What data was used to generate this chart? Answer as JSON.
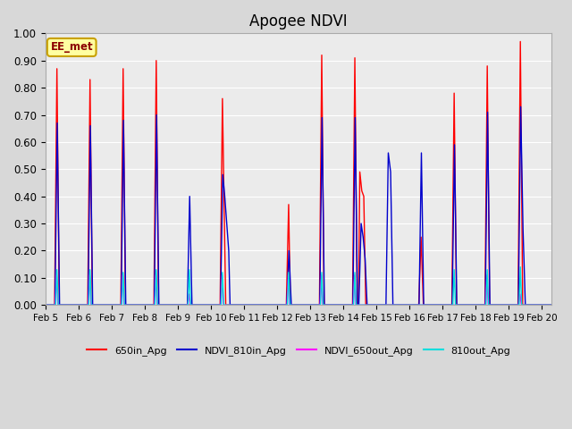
{
  "title": "Apogee NDVI",
  "annotation": "EE_met",
  "ylim": [
    0.0,
    1.0
  ],
  "yticks": [
    0.0,
    0.1,
    0.2,
    0.3,
    0.4,
    0.5,
    0.6,
    0.7,
    0.8,
    0.9,
    1.0
  ],
  "xtick_days": [
    5,
    6,
    7,
    8,
    9,
    10,
    11,
    12,
    13,
    14,
    15,
    16,
    17,
    18,
    19,
    20
  ],
  "day_start": 5.0,
  "day_end": 20.3,
  "series": {
    "650in_Apg": {
      "color": "#FF0000",
      "linewidth": 1.0,
      "keypoints": [
        [
          5.0,
          0.0
        ],
        [
          5.28,
          0.0
        ],
        [
          5.35,
          0.87
        ],
        [
          5.42,
          0.0
        ],
        [
          6.28,
          0.0
        ],
        [
          6.35,
          0.83
        ],
        [
          6.42,
          0.0
        ],
        [
          7.28,
          0.0
        ],
        [
          7.35,
          0.87
        ],
        [
          7.42,
          0.0
        ],
        [
          8.28,
          0.0
        ],
        [
          8.35,
          0.9
        ],
        [
          8.42,
          0.0
        ],
        [
          9.28,
          0.0
        ],
        [
          10.28,
          0.0
        ],
        [
          10.35,
          0.76
        ],
        [
          10.4,
          0.37
        ],
        [
          10.45,
          0.0
        ],
        [
          11.28,
          0.0
        ],
        [
          12.28,
          0.0
        ],
        [
          12.35,
          0.37
        ],
        [
          12.4,
          0.0
        ],
        [
          13.28,
          0.0
        ],
        [
          13.35,
          0.92
        ],
        [
          13.42,
          0.0
        ],
        [
          14.28,
          0.0
        ],
        [
          14.35,
          0.91
        ],
        [
          14.42,
          0.0
        ],
        [
          14.46,
          0.0
        ],
        [
          14.5,
          0.49
        ],
        [
          14.56,
          0.42
        ],
        [
          14.62,
          0.4
        ],
        [
          14.68,
          0.0
        ],
        [
          15.28,
          0.0
        ],
        [
          16.28,
          0.0
        ],
        [
          16.35,
          0.25
        ],
        [
          16.42,
          0.0
        ],
        [
          17.28,
          0.0
        ],
        [
          17.35,
          0.78
        ],
        [
          17.42,
          0.0
        ],
        [
          18.28,
          0.0
        ],
        [
          18.35,
          0.88
        ],
        [
          18.42,
          0.0
        ],
        [
          19.28,
          0.0
        ],
        [
          19.35,
          0.97
        ],
        [
          19.42,
          0.0
        ],
        [
          20.3,
          0.0
        ]
      ]
    },
    "NDVI_810in_Apg": {
      "color": "#0000CC",
      "linewidth": 1.0,
      "keypoints": [
        [
          5.0,
          0.0
        ],
        [
          5.29,
          0.0
        ],
        [
          5.36,
          0.67
        ],
        [
          5.43,
          0.0
        ],
        [
          6.29,
          0.0
        ],
        [
          6.36,
          0.66
        ],
        [
          6.43,
          0.0
        ],
        [
          7.29,
          0.0
        ],
        [
          7.36,
          0.68
        ],
        [
          7.43,
          0.0
        ],
        [
          8.29,
          0.0
        ],
        [
          8.36,
          0.7
        ],
        [
          8.43,
          0.0
        ],
        [
          9.29,
          0.0
        ],
        [
          9.36,
          0.4
        ],
        [
          9.43,
          0.0
        ],
        [
          10.29,
          0.0
        ],
        [
          10.36,
          0.48
        ],
        [
          10.42,
          0.4
        ],
        [
          10.48,
          0.3
        ],
        [
          10.54,
          0.2
        ],
        [
          10.58,
          0.0
        ],
        [
          11.29,
          0.0
        ],
        [
          12.29,
          0.0
        ],
        [
          12.36,
          0.2
        ],
        [
          12.43,
          0.0
        ],
        [
          13.29,
          0.0
        ],
        [
          13.36,
          0.69
        ],
        [
          13.43,
          0.0
        ],
        [
          14.29,
          0.0
        ],
        [
          14.36,
          0.69
        ],
        [
          14.43,
          0.0
        ],
        [
          14.47,
          0.0
        ],
        [
          14.54,
          0.3
        ],
        [
          14.6,
          0.25
        ],
        [
          14.66,
          0.17
        ],
        [
          14.72,
          0.0
        ],
        [
          15.29,
          0.0
        ],
        [
          15.36,
          0.56
        ],
        [
          15.43,
          0.49
        ],
        [
          15.5,
          0.0
        ],
        [
          16.29,
          0.0
        ],
        [
          16.36,
          0.56
        ],
        [
          16.43,
          0.0
        ],
        [
          17.29,
          0.0
        ],
        [
          17.36,
          0.59
        ],
        [
          17.43,
          0.0
        ],
        [
          18.29,
          0.0
        ],
        [
          18.36,
          0.71
        ],
        [
          18.43,
          0.0
        ],
        [
          19.29,
          0.0
        ],
        [
          19.36,
          0.73
        ],
        [
          19.43,
          0.28
        ],
        [
          19.5,
          0.0
        ],
        [
          20.3,
          0.0
        ]
      ]
    },
    "NDVI_650out_Apg": {
      "color": "#FF00FF",
      "linewidth": 1.0,
      "keypoints": [
        [
          5.0,
          0.0
        ],
        [
          5.3,
          0.0
        ],
        [
          5.34,
          0.11
        ],
        [
          5.38,
          0.0
        ],
        [
          6.3,
          0.0
        ],
        [
          6.34,
          0.11
        ],
        [
          6.38,
          0.0
        ],
        [
          7.3,
          0.0
        ],
        [
          7.34,
          0.11
        ],
        [
          7.38,
          0.0
        ],
        [
          8.3,
          0.0
        ],
        [
          8.34,
          0.11
        ],
        [
          8.38,
          0.0
        ],
        [
          9.3,
          0.0
        ],
        [
          9.34,
          0.04
        ],
        [
          9.38,
          0.0
        ],
        [
          10.3,
          0.0
        ],
        [
          10.34,
          0.11
        ],
        [
          10.38,
          0.0
        ],
        [
          12.3,
          0.0
        ],
        [
          12.34,
          0.11
        ],
        [
          12.38,
          0.0
        ],
        [
          13.3,
          0.0
        ],
        [
          13.34,
          0.11
        ],
        [
          13.38,
          0.0
        ],
        [
          14.3,
          0.0
        ],
        [
          14.34,
          0.11
        ],
        [
          14.38,
          0.0
        ],
        [
          15.3,
          0.0
        ],
        [
          16.3,
          0.0
        ],
        [
          17.3,
          0.0
        ],
        [
          18.3,
          0.0
        ],
        [
          18.34,
          0.11
        ],
        [
          18.38,
          0.0
        ],
        [
          19.3,
          0.0
        ],
        [
          19.34,
          0.04
        ],
        [
          19.38,
          0.0
        ],
        [
          20.3,
          0.0
        ]
      ]
    },
    "810out_Apg": {
      "color": "#00DDDD",
      "linewidth": 1.0,
      "keypoints": [
        [
          5.0,
          0.0
        ],
        [
          5.31,
          0.0
        ],
        [
          5.35,
          0.13
        ],
        [
          5.39,
          0.0
        ],
        [
          6.31,
          0.0
        ],
        [
          6.35,
          0.13
        ],
        [
          6.39,
          0.0
        ],
        [
          7.31,
          0.0
        ],
        [
          7.35,
          0.12
        ],
        [
          7.39,
          0.0
        ],
        [
          8.31,
          0.0
        ],
        [
          8.35,
          0.13
        ],
        [
          8.39,
          0.0
        ],
        [
          9.31,
          0.0
        ],
        [
          9.35,
          0.13
        ],
        [
          9.39,
          0.0
        ],
        [
          10.31,
          0.0
        ],
        [
          10.35,
          0.12
        ],
        [
          10.39,
          0.0
        ],
        [
          12.31,
          0.0
        ],
        [
          12.35,
          0.12
        ],
        [
          12.39,
          0.0
        ],
        [
          13.31,
          0.0
        ],
        [
          13.35,
          0.12
        ],
        [
          13.39,
          0.0
        ],
        [
          14.31,
          0.0
        ],
        [
          14.35,
          0.12
        ],
        [
          14.39,
          0.0
        ],
        [
          15.31,
          0.0
        ],
        [
          16.31,
          0.0
        ],
        [
          17.31,
          0.0
        ],
        [
          17.35,
          0.13
        ],
        [
          17.39,
          0.0
        ],
        [
          18.31,
          0.0
        ],
        [
          18.35,
          0.13
        ],
        [
          18.39,
          0.0
        ],
        [
          19.31,
          0.0
        ],
        [
          19.35,
          0.14
        ],
        [
          19.39,
          0.0
        ],
        [
          20.3,
          0.0
        ]
      ]
    }
  },
  "legend": [
    {
      "label": "650in_Apg",
      "color": "#FF0000"
    },
    {
      "label": "NDVI_810in_Apg",
      "color": "#0000CC"
    },
    {
      "label": "NDVI_650out_Apg",
      "color": "#FF00FF"
    },
    {
      "label": "810out_Apg",
      "color": "#00DDDD"
    }
  ],
  "fig_bg_color": "#D8D8D8",
  "plot_bg_color": "#EBEBEB",
  "grid_color": "#FFFFFF",
  "title_fontsize": 12,
  "annotation_facecolor": "#FFFFA0",
  "annotation_edgecolor": "#C8A000",
  "annotation_textcolor": "#8B0000"
}
